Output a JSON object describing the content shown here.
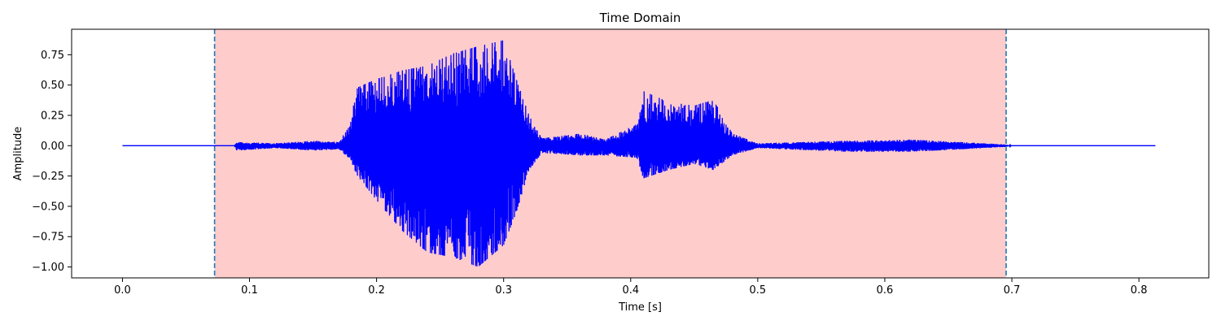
{
  "chart_data": {
    "type": "line",
    "title": "Time Domain",
    "xlabel": "Time [s]",
    "ylabel": "Amplitude",
    "xlim": [
      -0.04,
      0.855
    ],
    "ylim": [
      -1.09,
      0.96
    ],
    "xticks": [
      0.0,
      0.1,
      0.2,
      0.3,
      0.4,
      0.5,
      0.6,
      0.7,
      0.8
    ],
    "xtick_labels": [
      "0.0",
      "0.1",
      "0.2",
      "0.3",
      "0.4",
      "0.5",
      "0.6",
      "0.7",
      "0.8"
    ],
    "yticks": [
      -1.0,
      -0.75,
      -0.5,
      -0.25,
      0.0,
      0.25,
      0.5,
      0.75
    ],
    "ytick_labels": [
      "−1.00",
      "−0.75",
      "−0.50",
      "−0.25",
      "0.00",
      "0.25",
      "0.50",
      "0.75"
    ],
    "grid": false,
    "duration": 0.813,
    "highlight_region": {
      "x_start": 0.0725,
      "x_end": 0.6955,
      "color": "#ffcccc"
    },
    "vlines": [
      {
        "x": 0.0725,
        "style": "dashed",
        "color": "#1f77b4"
      },
      {
        "x": 0.6955,
        "style": "dashed",
        "color": "#1f77b4"
      }
    ],
    "series": [
      {
        "color": "#0000ff",
        "envelope": [
          {
            "x": 0.0,
            "top": 0.0,
            "bottom": 0.0
          },
          {
            "x": 0.088,
            "top": 0.0,
            "bottom": 0.0
          },
          {
            "x": 0.09,
            "top": 0.03,
            "bottom": -0.04
          },
          {
            "x": 0.12,
            "top": 0.02,
            "bottom": -0.02
          },
          {
            "x": 0.15,
            "top": 0.04,
            "bottom": -0.04
          },
          {
            "x": 0.17,
            "top": 0.03,
            "bottom": -0.03
          },
          {
            "x": 0.178,
            "top": 0.15,
            "bottom": -0.1
          },
          {
            "x": 0.185,
            "top": 0.48,
            "bottom": -0.25
          },
          {
            "x": 0.2,
            "top": 0.55,
            "bottom": -0.45
          },
          {
            "x": 0.22,
            "top": 0.62,
            "bottom": -0.7
          },
          {
            "x": 0.24,
            "top": 0.66,
            "bottom": -0.88
          },
          {
            "x": 0.26,
            "top": 0.76,
            "bottom": -0.92
          },
          {
            "x": 0.28,
            "top": 0.82,
            "bottom": -1.0
          },
          {
            "x": 0.3,
            "top": 0.87,
            "bottom": -0.82
          },
          {
            "x": 0.31,
            "top": 0.55,
            "bottom": -0.55
          },
          {
            "x": 0.32,
            "top": 0.25,
            "bottom": -0.2
          },
          {
            "x": 0.33,
            "top": 0.06,
            "bottom": -0.06
          },
          {
            "x": 0.36,
            "top": 0.1,
            "bottom": -0.08
          },
          {
            "x": 0.38,
            "top": 0.05,
            "bottom": -0.08
          },
          {
            "x": 0.405,
            "top": 0.18,
            "bottom": -0.1
          },
          {
            "x": 0.41,
            "top": 0.45,
            "bottom": -0.27
          },
          {
            "x": 0.43,
            "top": 0.36,
            "bottom": -0.2
          },
          {
            "x": 0.45,
            "top": 0.33,
            "bottom": -0.15
          },
          {
            "x": 0.465,
            "top": 0.38,
            "bottom": -0.2
          },
          {
            "x": 0.48,
            "top": 0.1,
            "bottom": -0.08
          },
          {
            "x": 0.5,
            "top": 0.02,
            "bottom": -0.02
          },
          {
            "x": 0.57,
            "top": 0.04,
            "bottom": -0.05
          },
          {
            "x": 0.62,
            "top": 0.05,
            "bottom": -0.05
          },
          {
            "x": 0.66,
            "top": 0.03,
            "bottom": -0.03
          },
          {
            "x": 0.695,
            "top": 0.01,
            "bottom": -0.01
          },
          {
            "x": 0.7,
            "top": 0.0,
            "bottom": 0.0
          },
          {
            "x": 0.813,
            "top": 0.0,
            "bottom": 0.0
          }
        ]
      }
    ]
  }
}
